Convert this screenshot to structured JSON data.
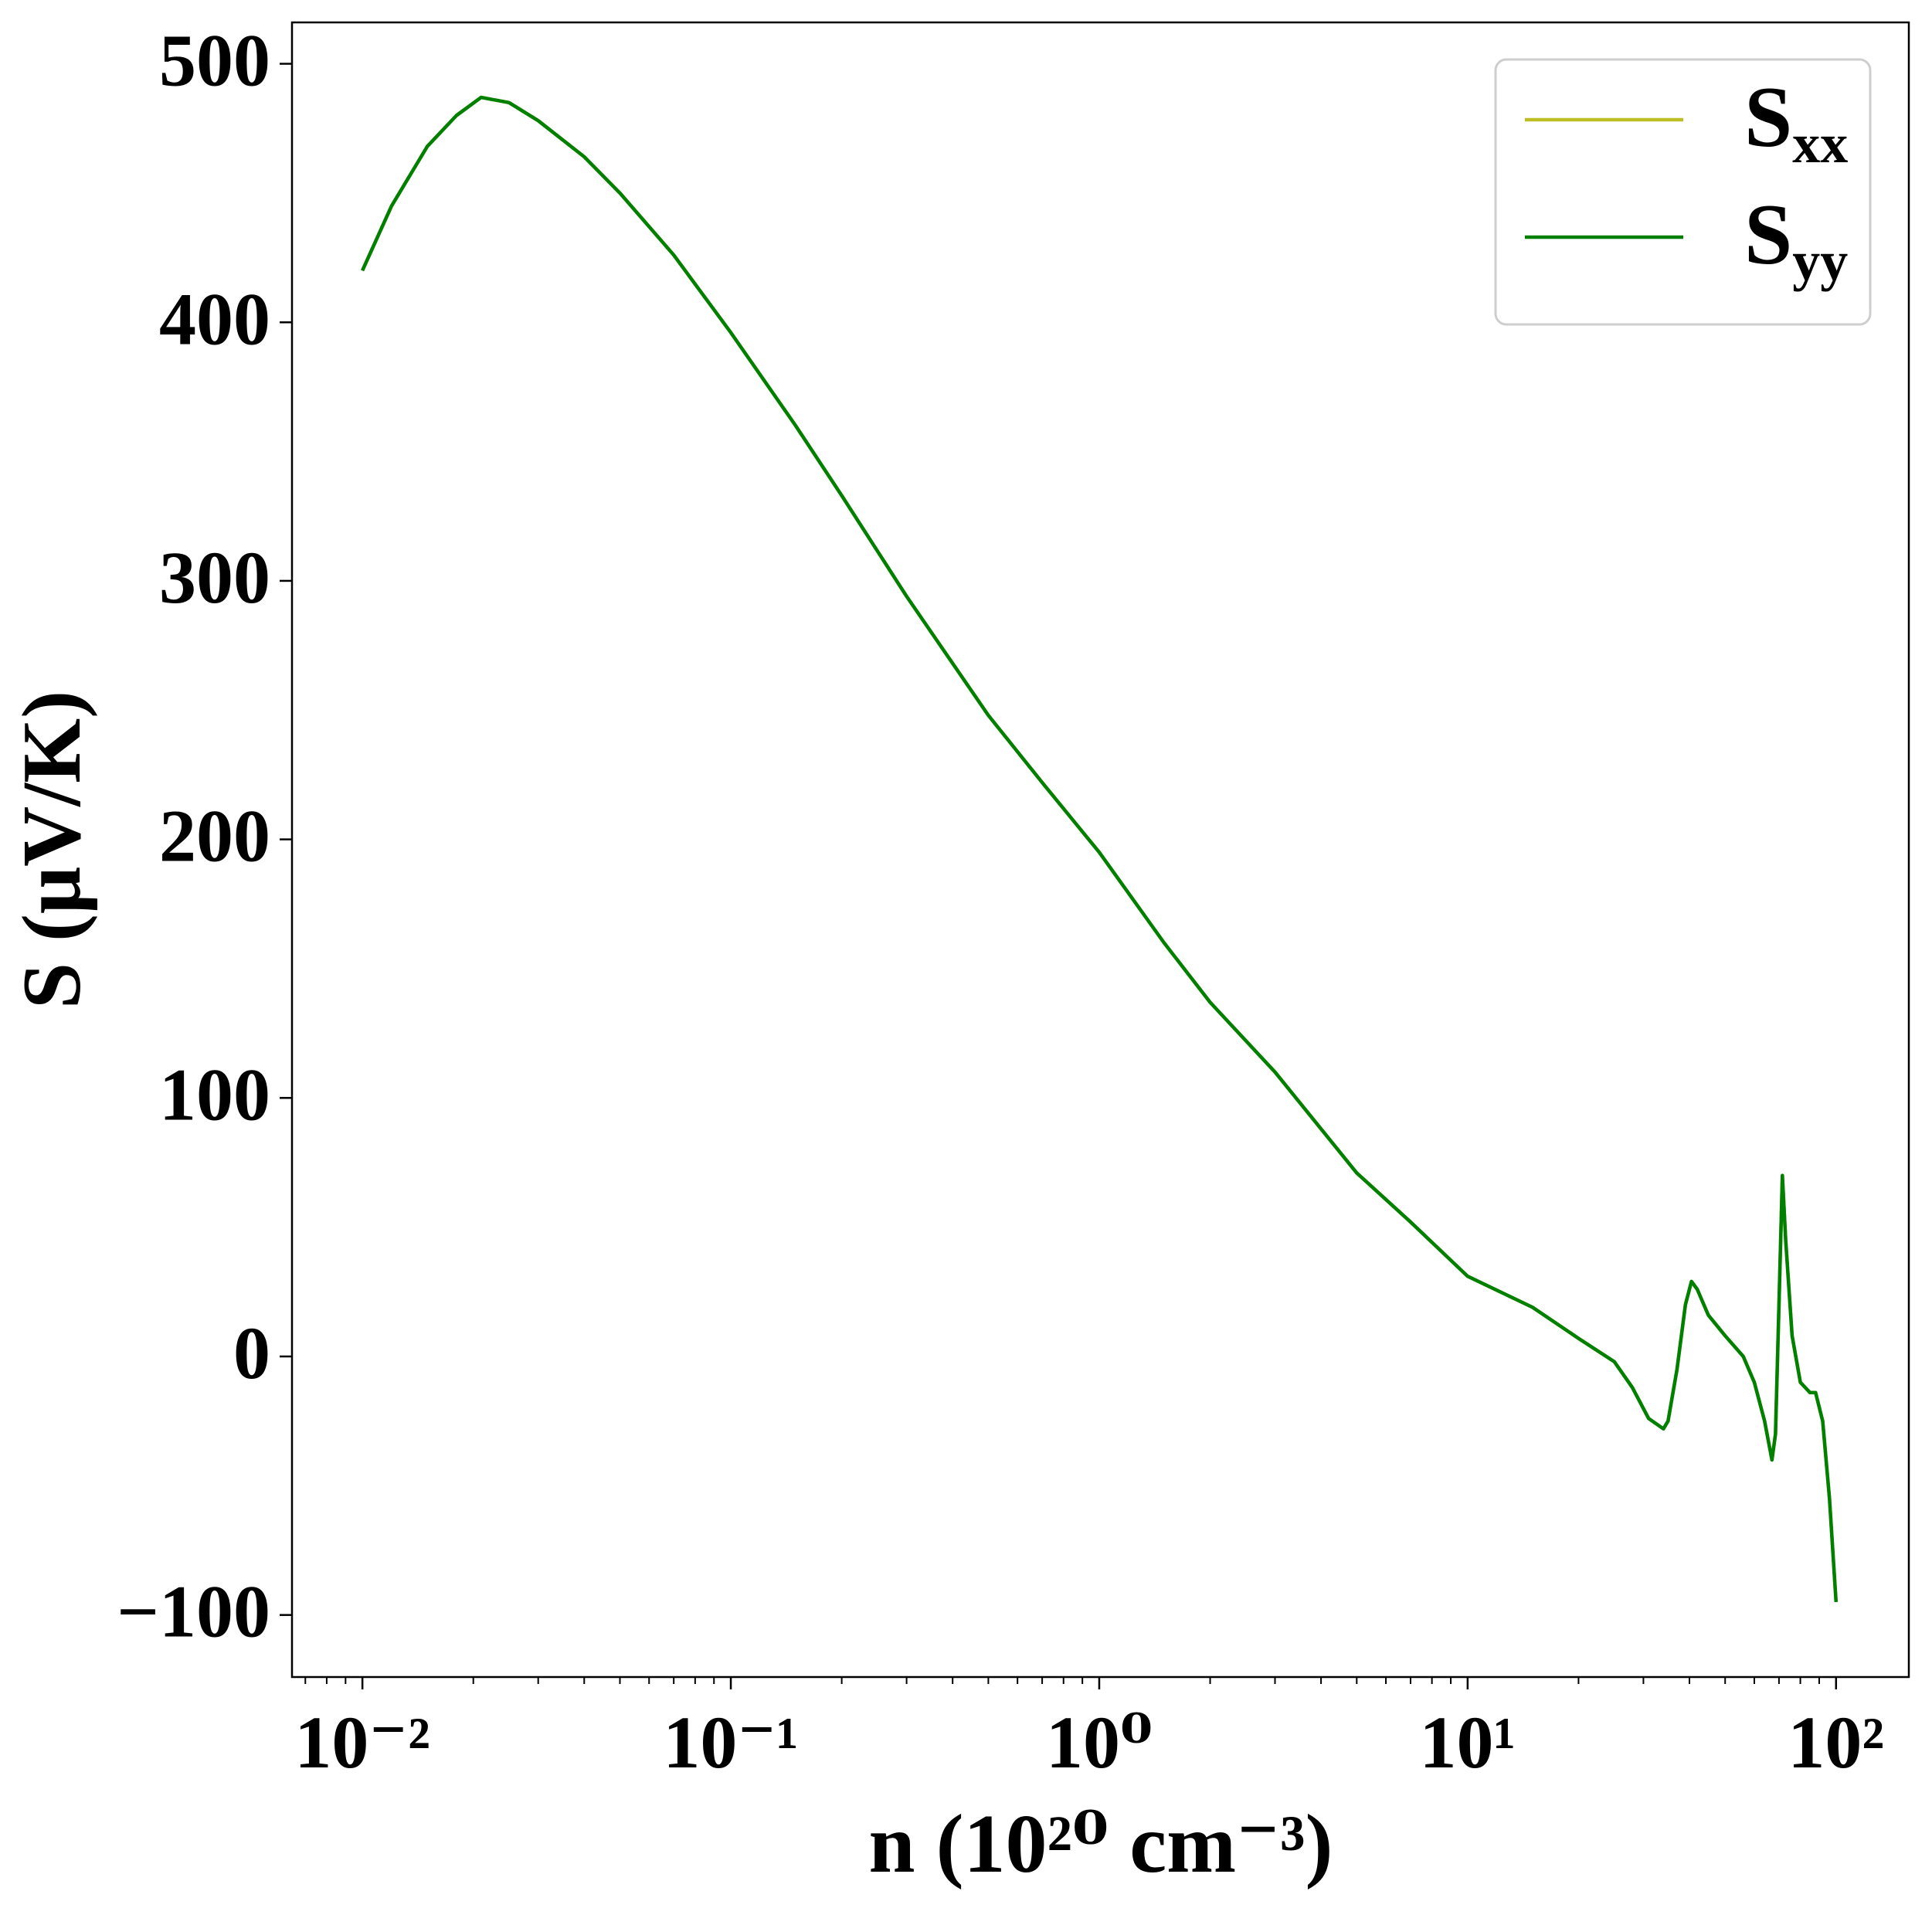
{
  "chart_data": {
    "type": "line",
    "xlabel": "n (10²⁰ cm⁻³)",
    "ylabel": "S (μV/K)",
    "xscale": "log",
    "minor_ticks": true,
    "legend": "upper right",
    "xlim": [
      0.00644,
      157.6
    ],
    "ylim": [
      -124,
      516
    ],
    "xticks": [
      {
        "value": 0.01,
        "label": "10⁻²"
      },
      {
        "value": 0.1,
        "label": "10⁻¹"
      },
      {
        "value": 1,
        "label": "10⁰"
      },
      {
        "value": 10,
        "label": "10¹"
      },
      {
        "value": 100,
        "label": "10²"
      }
    ],
    "yticks": [
      {
        "value": -100,
        "label": "−100"
      },
      0,
      100,
      200,
      300,
      400,
      500
    ],
    "x": [
      0.01,
      0.012,
      0.015,
      0.018,
      0.021,
      0.025,
      0.03,
      0.04,
      0.05,
      0.07,
      0.1,
      0.15,
      0.2,
      0.3,
      0.5,
      0.7,
      1,
      1.5,
      2,
      3,
      5,
      7,
      10,
      15,
      20,
      25,
      28,
      31,
      34,
      35,
      37,
      39,
      40.5,
      42,
      45,
      50,
      56,
      60,
      64,
      67,
      68.5,
      70,
      71.5,
      73,
      76,
      80,
      85,
      88,
      92,
      96,
      100
    ],
    "series": [
      {
        "name": "Sxx",
        "color": "#bcbd22",
        "values": [
          420,
          445,
          468,
          480,
          487,
          485,
          478,
          464,
          450,
          426,
          396,
          360,
          333,
          294,
          248,
          222,
          195,
          160,
          137,
          110,
          71,
          52,
          31,
          19,
          7,
          -2,
          -12,
          -24,
          -28,
          -25,
          -5,
          20,
          29,
          26,
          16,
          8,
          0,
          -10,
          -25,
          -40,
          -30,
          20,
          70,
          45,
          8,
          -10,
          -14,
          -14,
          -25,
          -55,
          -95
        ]
      },
      {
        "name": "Syy",
        "color": "#008000",
        "values": [
          420,
          445,
          468,
          480,
          487,
          485,
          478,
          464,
          450,
          426,
          396,
          360,
          333,
          294,
          248,
          222,
          195,
          160,
          137,
          110,
          71,
          52,
          31,
          19,
          7,
          -2,
          -12,
          -24,
          -28,
          -25,
          -5,
          20,
          29,
          26,
          16,
          8,
          0,
          -10,
          -25,
          -40,
          -30,
          20,
          70,
          45,
          8,
          -10,
          -14,
          -14,
          -25,
          -55,
          -95
        ]
      }
    ]
  }
}
